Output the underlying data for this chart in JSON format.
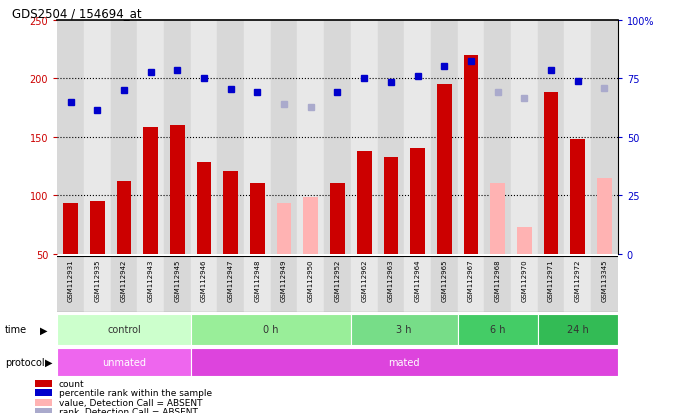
{
  "title": "GDS2504 / 154694_at",
  "samples": [
    "GSM112931",
    "GSM112935",
    "GSM112942",
    "GSM112943",
    "GSM112945",
    "GSM112946",
    "GSM112947",
    "GSM112948",
    "GSM112949",
    "GSM112950",
    "GSM112952",
    "GSM112962",
    "GSM112963",
    "GSM112964",
    "GSM112965",
    "GSM112967",
    "GSM112968",
    "GSM112970",
    "GSM112971",
    "GSM112972",
    "GSM113345"
  ],
  "bar_values": [
    93,
    95,
    112,
    158,
    160,
    128,
    121,
    110,
    null,
    null,
    110,
    138,
    133,
    140,
    195,
    220,
    null,
    null,
    188,
    148,
    null
  ],
  "bar_absent": [
    null,
    null,
    null,
    null,
    null,
    null,
    null,
    null,
    93,
    98,
    null,
    null,
    null,
    null,
    null,
    null,
    110,
    73,
    null,
    null,
    115
  ],
  "rank_values": [
    180,
    173,
    190,
    205,
    207,
    200,
    191,
    188,
    null,
    null,
    188,
    200,
    197,
    202,
    210,
    215,
    null,
    null,
    207,
    198,
    null
  ],
  "rank_absent": [
    null,
    null,
    null,
    null,
    null,
    null,
    null,
    null,
    178,
    175,
    null,
    null,
    null,
    null,
    null,
    null,
    188,
    183,
    null,
    null,
    192
  ],
  "bar_color_present": "#cc0000",
  "bar_color_absent": "#ffb3b3",
  "rank_color_present": "#0000cc",
  "rank_color_absent": "#aaaacc",
  "ylim_left": [
    50,
    250
  ],
  "ylim_right": [
    0,
    100
  ],
  "yticks_left": [
    50,
    100,
    150,
    200,
    250
  ],
  "ytick_labels_right": [
    "0",
    "25",
    "50",
    "75",
    "100%"
  ],
  "yticks_right": [
    0,
    25,
    50,
    75,
    100
  ],
  "gridlines": [
    100,
    150,
    200
  ],
  "groups": [
    {
      "label": "control",
      "start": 0,
      "end": 5,
      "color": "#ccffcc"
    },
    {
      "label": "0 h",
      "start": 5,
      "end": 11,
      "color": "#99ee99"
    },
    {
      "label": "3 h",
      "start": 11,
      "end": 15,
      "color": "#66dd88"
    },
    {
      "label": "6 h",
      "start": 15,
      "end": 18,
      "color": "#44cc66"
    },
    {
      "label": "24 h",
      "start": 18,
      "end": 21,
      "color": "#33bb55"
    }
  ],
  "protocol_groups": [
    {
      "label": "unmated",
      "start": 0,
      "end": 5,
      "color": "#ee55ee"
    },
    {
      "label": "mated",
      "start": 5,
      "end": 21,
      "color": "#cc44cc"
    }
  ],
  "legend_items": [
    {
      "label": "count",
      "color": "#cc0000"
    },
    {
      "label": "percentile rank within the sample",
      "color": "#0000cc"
    },
    {
      "label": "value, Detection Call = ABSENT",
      "color": "#ffb3b3"
    },
    {
      "label": "rank, Detection Call = ABSENT",
      "color": "#aaaacc"
    }
  ],
  "col_bg_even": "#d8d8d8",
  "col_bg_odd": "#e8e8e8",
  "plot_bg": "#ffffff",
  "plot_area_bg": "#ffffff"
}
